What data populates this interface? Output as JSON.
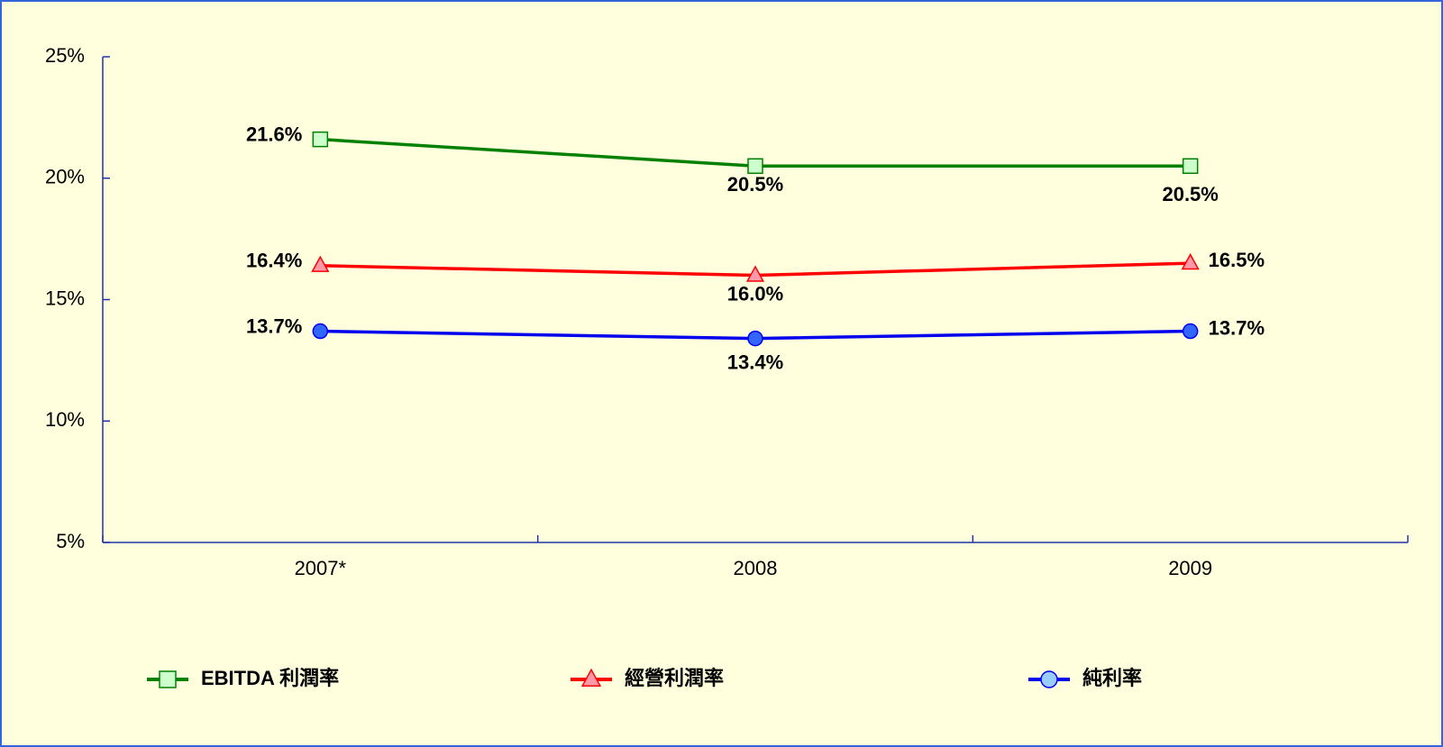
{
  "chart_data": {
    "type": "line",
    "categories": [
      "2007*",
      "2008",
      "2009"
    ],
    "series": [
      {
        "name": "EBITDA 利潤率",
        "color": "#008000",
        "marker": "square",
        "marker_fill": "#ccffcc",
        "values": [
          21.6,
          20.5,
          20.5
        ],
        "value_labels": [
          "21.6%",
          "20.5%",
          "20.5%"
        ]
      },
      {
        "name": "經營利潤率",
        "color": "#ff0000",
        "marker": "triangle",
        "marker_fill": "#ff99aa",
        "values": [
          16.4,
          16.0,
          16.5
        ],
        "value_labels": [
          "16.4%",
          "16.0%",
          "16.5%"
        ]
      },
      {
        "name": "純利率",
        "color": "#0000ee",
        "marker": "circle",
        "marker_fill": "#3366ff",
        "values": [
          13.7,
          13.4,
          13.7
        ],
        "value_labels": [
          "13.7%",
          "13.4%",
          "13.7%"
        ]
      }
    ],
    "ylim": [
      5,
      25
    ],
    "yticks": [
      {
        "value": 5,
        "label": "5%"
      },
      {
        "value": 10,
        "label": "10%"
      },
      {
        "value": 15,
        "label": "15%"
      },
      {
        "value": 20,
        "label": "20%"
      },
      {
        "value": 25,
        "label": "25%"
      }
    ],
    "grid": false,
    "legend": "bottom"
  }
}
